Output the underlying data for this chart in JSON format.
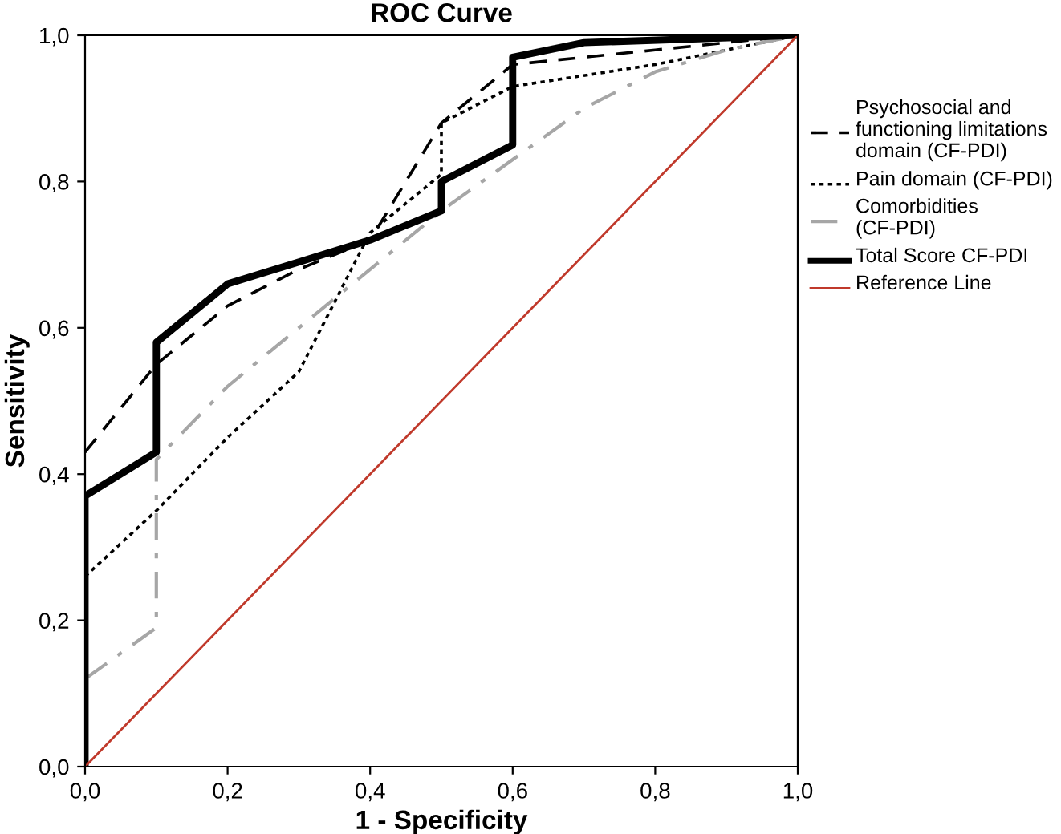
{
  "chart_data": {
    "type": "line",
    "title": "ROC Curve",
    "xlabel": "1 - Specificity",
    "ylabel": "Sensitivity",
    "xlim": [
      0,
      1
    ],
    "ylim": [
      0,
      1
    ],
    "xticks": [
      {
        "value": 0,
        "label": "0,0"
      },
      {
        "value": 0.2,
        "label": "0,2"
      },
      {
        "value": 0.4,
        "label": "0,4"
      },
      {
        "value": 0.6,
        "label": "0,6"
      },
      {
        "value": 0.8,
        "label": "0,8"
      },
      {
        "value": 1,
        "label": "1,0"
      }
    ],
    "yticks": [
      {
        "value": 0,
        "label": "0,0"
      },
      {
        "value": 0.2,
        "label": "0,2"
      },
      {
        "value": 0.4,
        "label": "0,4"
      },
      {
        "value": 0.6,
        "label": "0,6"
      },
      {
        "value": 0.8,
        "label": "0,8"
      },
      {
        "value": 1,
        "label": "1,0"
      }
    ],
    "grid": false,
    "legend": "right",
    "series": [
      {
        "name": "Psychosocial and functioning limitations domain (CF-PDI)",
        "color": "#000000",
        "line_style": "dashed",
        "x": [
          0,
          0.1,
          0.2,
          0.3,
          0.4,
          0.5,
          0.6,
          0.8,
          1
        ],
        "values": [
          0.43,
          0.55,
          0.63,
          0.68,
          0.72,
          0.88,
          0.96,
          0.98,
          1
        ]
      },
      {
        "name": "Pain domain (CF-PDI)",
        "color": "#000000",
        "line_style": "dotted",
        "x": [
          0,
          0.1,
          0.2,
          0.3,
          0.4,
          0.5,
          0.5,
          0.6,
          0.8,
          1
        ],
        "values": [
          0.26,
          0.35,
          0.45,
          0.54,
          0.73,
          0.81,
          0.88,
          0.93,
          0.96,
          1
        ]
      },
      {
        "name": "Comorbidities (CF-PDI)",
        "color": "#a6a6a6",
        "line_style": "dashdot",
        "x": [
          0,
          0.1,
          0.1,
          0.2,
          0.3,
          0.4,
          0.5,
          0.6,
          0.7,
          0.8,
          0.9,
          1
        ],
        "values": [
          0.12,
          0.19,
          0.42,
          0.52,
          0.6,
          0.68,
          0.76,
          0.83,
          0.9,
          0.95,
          0.98,
          1
        ]
      },
      {
        "name": "Total Score CF-PDI",
        "color": "#000000",
        "line_style": "solid",
        "x": [
          0,
          0,
          0.1,
          0.1,
          0.2,
          0.3,
          0.4,
          0.5,
          0.5,
          0.6,
          0.6,
          0.7,
          1
        ],
        "values": [
          0,
          0.37,
          0.43,
          0.58,
          0.66,
          0.69,
          0.72,
          0.76,
          0.8,
          0.85,
          0.97,
          0.99,
          1
        ]
      },
      {
        "name": "Reference Line",
        "color": "#c0392b",
        "line_style": "solid",
        "x": [
          0,
          1
        ],
        "values": [
          0,
          1
        ]
      }
    ]
  }
}
